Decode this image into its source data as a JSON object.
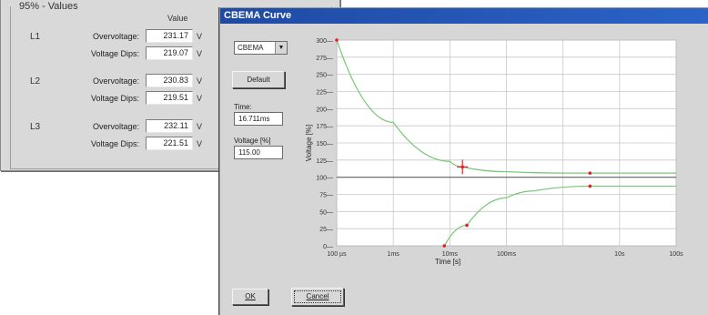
{
  "values_panel": {
    "title": "95% - Values",
    "column_header": "Value",
    "unit": "V",
    "phases": [
      {
        "name": "L1",
        "overvoltage_label": "Overvoltage:",
        "overvoltage": "231.17",
        "dips_label": "Voltage Dips:",
        "dips": "219.07"
      },
      {
        "name": "L2",
        "overvoltage_label": "Overvoltage:",
        "overvoltage": "230.83",
        "dips_label": "Voltage Dips:",
        "dips": "219.51"
      },
      {
        "name": "L3",
        "overvoltage_label": "Overvoltage:",
        "overvoltage": "232.11",
        "dips_label": "Voltage Dips:",
        "dips": "221.51"
      }
    ]
  },
  "dialog": {
    "title": "CBEMA Curve",
    "curve_select": "CBEMA",
    "default_button": "Default",
    "time_label": "Time:",
    "time_value": "16.711ms",
    "voltage_label": "Voltage [%]",
    "voltage_value": "115.00",
    "ok_button": "OK",
    "cancel_button": "Cancel"
  },
  "chart_data": {
    "type": "line",
    "xlabel": "Time [s]",
    "ylabel": "Voltage [%]",
    "x_scale": "log",
    "x_ticks": [
      "100 µs",
      "1ms",
      "10ms",
      "100ms",
      "",
      "10s",
      "100s"
    ],
    "y_ticks": [
      "0",
      "25",
      "50",
      "75",
      "100",
      "125",
      "150",
      "175",
      "200",
      "225",
      "250",
      "275",
      "300"
    ],
    "ylim": [
      0,
      300
    ],
    "grid": true,
    "reference_line": 100,
    "series": [
      {
        "color": "#78c878",
        "points": [
          [
            0.0001,
            300
          ],
          [
            0.001,
            180
          ],
          [
            0.01,
            123
          ],
          [
            0.0167,
            115
          ],
          [
            0.1,
            108
          ],
          [
            1,
            106
          ],
          [
            10,
            106
          ],
          [
            100,
            106
          ]
        ]
      },
      {
        "color": "#78c878",
        "points": [
          [
            0.008,
            0
          ],
          [
            0.02,
            30
          ],
          [
            0.1,
            70
          ],
          [
            0.3,
            80
          ],
          [
            3,
            87
          ],
          [
            100,
            87
          ]
        ]
      }
    ],
    "markers": [
      {
        "x": 0.0001,
        "y": 300
      },
      {
        "x": 0.0167,
        "y": 115,
        "selected": true
      },
      {
        "x": 3,
        "y": 106
      },
      {
        "x": 3,
        "y": 87
      },
      {
        "x": 0.02,
        "y": 30
      },
      {
        "x": 0.008,
        "y": 0
      }
    ]
  }
}
